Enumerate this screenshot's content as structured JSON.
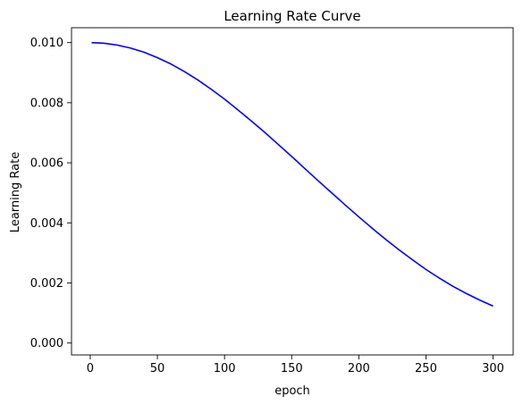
{
  "chart_data": {
    "type": "line",
    "title": "Learning Rate Curve",
    "xlabel": "epoch",
    "ylabel": "Learning Rate",
    "xlim": [
      -13.95,
      314.95
    ],
    "ylim": [
      -0.000396,
      0.010496
    ],
    "xticks": [
      0,
      50,
      100,
      150,
      200,
      250,
      300
    ],
    "xtick_labels": [
      "0",
      "50",
      "100",
      "150",
      "200",
      "250",
      "300"
    ],
    "yticks": [
      0.0,
      0.002,
      0.004,
      0.006,
      0.008,
      0.01
    ],
    "ytick_labels": [
      "0.000",
      "0.002",
      "0.004",
      "0.006",
      "0.008",
      "0.010"
    ],
    "grid": false,
    "legend": "none",
    "series": [
      {
        "color": "#0000ff",
        "x": [
          1,
          10,
          20,
          30,
          40,
          50,
          60,
          70,
          80,
          90,
          100,
          110,
          120,
          130,
          140,
          150,
          160,
          170,
          180,
          190,
          200,
          210,
          220,
          230,
          240,
          250,
          260,
          270,
          280,
          290,
          300
        ],
        "y": [
          0.01,
          0.00998,
          0.00992,
          0.00982,
          0.00968,
          0.0095,
          0.00929,
          0.00904,
          0.00876,
          0.00845,
          0.00812,
          0.00776,
          0.00739,
          0.00701,
          0.00661,
          0.00621,
          0.0058,
          0.00539,
          0.00499,
          0.00459,
          0.0042,
          0.00382,
          0.00345,
          0.0031,
          0.00277,
          0.00245,
          0.00216,
          0.00189,
          0.00165,
          0.00143,
          0.00123
        ]
      }
    ]
  }
}
